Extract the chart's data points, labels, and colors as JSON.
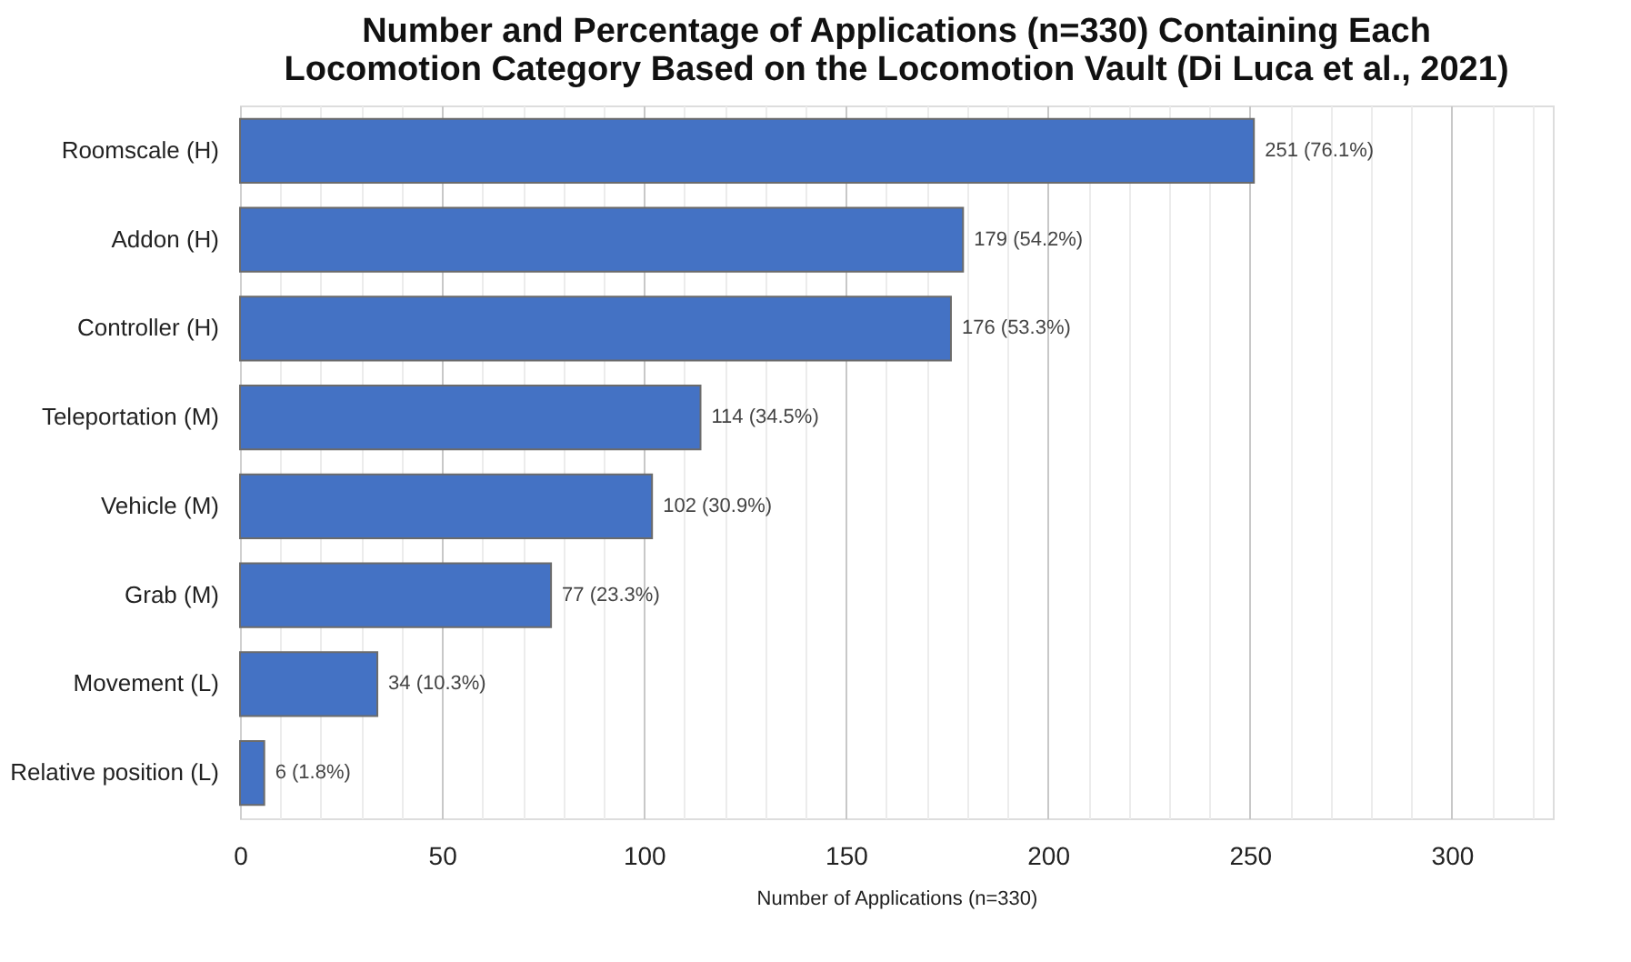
{
  "chart_data": {
    "type": "bar",
    "orientation": "horizontal",
    "title": [
      "Number and Percentage of Applications (n=330) Containing Each",
      "Locomotion Category Based on the Locomotion Vault (Di Luca et al., 2021)"
    ],
    "xlabel": "Number of Applications (n=330)",
    "categories": [
      "Roomscale (H)",
      "Addon (H)",
      "Controller (H)",
      "Teleportation (M)",
      "Vehicle (M)",
      "Grab (M)",
      "Movement (L)",
      "Relative position (L)"
    ],
    "values": [
      251,
      179,
      176,
      114,
      102,
      77,
      34,
      6
    ],
    "value_labels": [
      "251 (76.1%)",
      "179 (54.2%)",
      "176 (53.3%)",
      "114 (34.5%)",
      "102 (30.9%)",
      "77 (23.3%)",
      "34 (10.3%)",
      "6 (1.8%)"
    ],
    "color": "#4472c4",
    "xlim": [
      0,
      325
    ],
    "xticks": [
      0,
      {
        "value": 10,
        "label": null
      },
      {
        "value": 20,
        "label": null
      },
      {
        "value": 30,
        "label": null
      },
      {
        "value": 40,
        "label": null
      },
      50,
      {
        "value": 60,
        "label": null
      },
      {
        "value": 70,
        "label": null
      },
      {
        "value": 80,
        "label": null
      },
      {
        "value": 90,
        "label": null
      },
      100,
      {
        "value": 110,
        "label": null
      },
      {
        "value": 120,
        "label": null
      },
      {
        "value": 130,
        "label": null
      },
      {
        "value": 140,
        "label": null
      },
      150,
      {
        "value": 160,
        "label": null
      },
      {
        "value": 170,
        "label": null
      },
      {
        "value": 180,
        "label": null
      },
      {
        "value": 190,
        "label": null
      },
      200,
      {
        "value": 210,
        "label": null
      },
      {
        "value": 220,
        "label": null
      },
      {
        "value": 230,
        "label": null
      },
      {
        "value": 240,
        "label": null
      },
      250,
      {
        "value": 260,
        "label": null
      },
      {
        "value": 270,
        "label": null
      },
      {
        "value": 280,
        "label": null
      },
      {
        "value": 290,
        "label": null
      },
      300,
      {
        "value": 310,
        "label": null
      },
      {
        "value": 320,
        "label": null
      }
    ],
    "grid": "x"
  }
}
